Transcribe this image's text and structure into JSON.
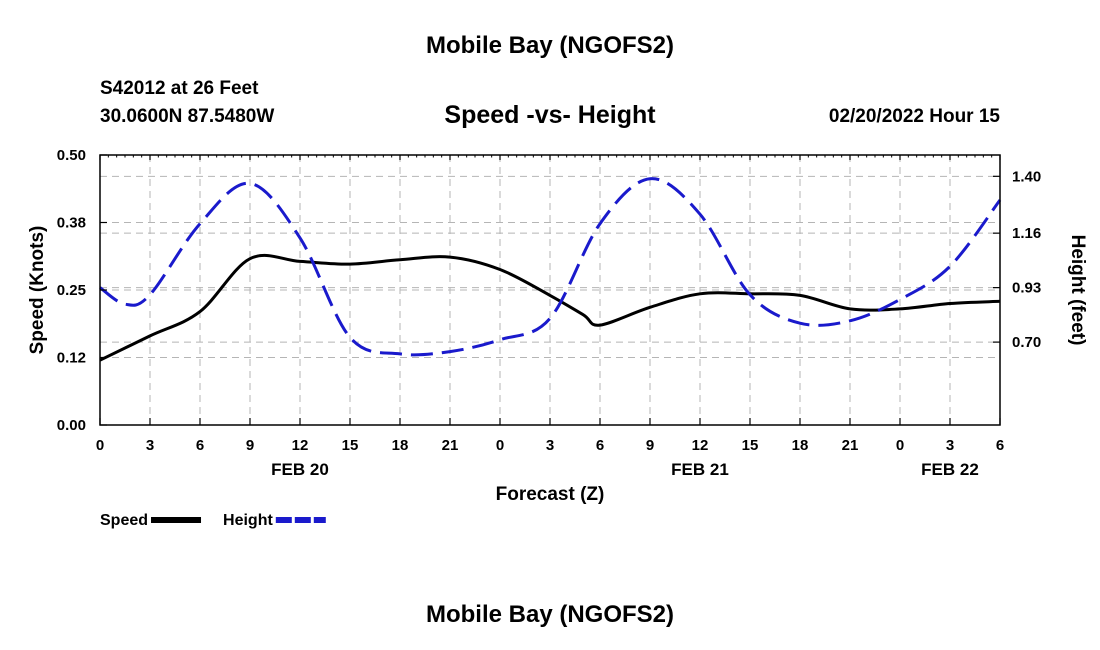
{
  "header": {
    "title": "Mobile Bay (NGOFS2)",
    "station": "S42012 at 26 Feet",
    "coords": "30.0600N  87.5480W",
    "datetime": "02/20/2022 Hour 15",
    "footer_title": "Mobile Bay (NGOFS2)"
  },
  "chart_data": {
    "type": "line",
    "title": "Speed -vs- Height",
    "xlabel": "Forecast (Z)",
    "ylabel": "Speed (Knots)",
    "y2label": "Height (feet)",
    "xlim": [
      0,
      54
    ],
    "ylim": [
      0,
      0.5
    ],
    "y2lim": [
      0.35,
      1.49
    ],
    "xticks": [
      0,
      3,
      6,
      9,
      12,
      15,
      18,
      21,
      24,
      27,
      30,
      33,
      36,
      39,
      42,
      45,
      48,
      51,
      54
    ],
    "xtick_labels": [
      "0",
      "3",
      "6",
      "9",
      "12",
      "15",
      "18",
      "21",
      "0",
      "3",
      "6",
      "9",
      "12",
      "15",
      "18",
      "21",
      "0",
      "3",
      "6"
    ],
    "date_labels": [
      {
        "x": 12,
        "label": "FEB 20"
      },
      {
        "x": 36,
        "label": "FEB 21"
      },
      {
        "x": 51,
        "label": "FEB 22"
      }
    ],
    "yticks": [
      0.0,
      0.125,
      0.25,
      0.375,
      0.5
    ],
    "ytick_labels": [
      "0.00",
      "0.12",
      "0.25",
      "0.38",
      "0.50"
    ],
    "y2ticks": [
      0.7,
      0.93,
      1.16,
      1.4
    ],
    "y2tick_labels": [
      "0.70",
      "0.93",
      "1.16",
      "1.40"
    ],
    "grid": true,
    "legend_position": "bottom-left",
    "series": [
      {
        "name": "Speed",
        "axis": "left",
        "color": "#000000",
        "style": "solid",
        "x": [
          0,
          3,
          6,
          9,
          12,
          15,
          18,
          21,
          24,
          27,
          29,
          30,
          33,
          36,
          39,
          42,
          45,
          48,
          51,
          54
        ],
        "y": [
          0.12,
          0.165,
          0.21,
          0.308,
          0.303,
          0.298,
          0.306,
          0.311,
          0.288,
          0.24,
          0.204,
          0.185,
          0.218,
          0.243,
          0.243,
          0.24,
          0.215,
          0.215,
          0.225,
          0.229
        ]
      },
      {
        "name": "Height",
        "axis": "right",
        "color": "#1a1acc",
        "style": "dashed",
        "x": [
          0,
          1.5,
          3,
          6,
          9,
          12,
          15,
          18,
          21,
          24,
          27,
          30,
          33,
          36,
          39,
          42,
          45,
          48,
          51,
          54
        ],
        "y": [
          0.93,
          0.86,
          0.9,
          1.2,
          1.37,
          1.14,
          0.72,
          0.65,
          0.66,
          0.71,
          0.8,
          1.2,
          1.39,
          1.24,
          0.9,
          0.78,
          0.79,
          0.88,
          1.02,
          1.3
        ]
      }
    ]
  }
}
